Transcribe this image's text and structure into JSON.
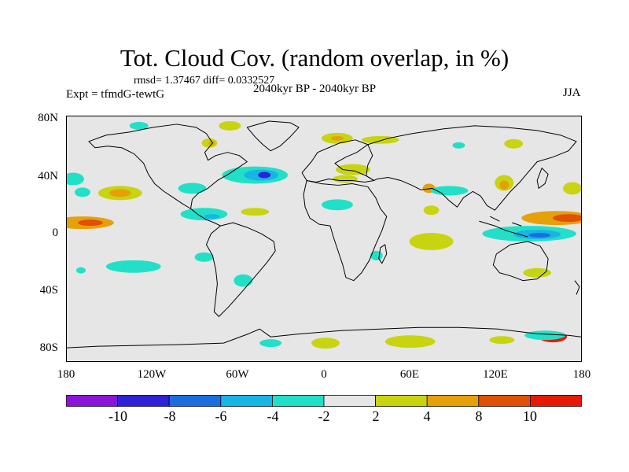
{
  "title": "Tot. Cloud Cov. (random overlap, in %)",
  "stats": "rmsd= 1.37467 diff= 0.0332527",
  "experiment": "Expt = tfmdG-tewtG",
  "period": "2040kyr BP - 2040kyr BP",
  "season": "JJA",
  "lat_ticks": [
    "80N",
    "40N",
    "0",
    "40S",
    "80S"
  ],
  "lon_ticks": [
    "180",
    "120W",
    "60W",
    "0",
    "60E",
    "120E",
    "180"
  ],
  "colorbar": {
    "colors": [
      "#8a14d8",
      "#2d22d6",
      "#1a6ee0",
      "#18b4e6",
      "#22e0c8",
      "#e6e6e6",
      "#c8d410",
      "#e6a00a",
      "#e05005",
      "#e61905"
    ],
    "labels": [
      "-10",
      "-8",
      "-6",
      "-4",
      "-2",
      "2",
      "4",
      "8",
      "10"
    ]
  }
}
